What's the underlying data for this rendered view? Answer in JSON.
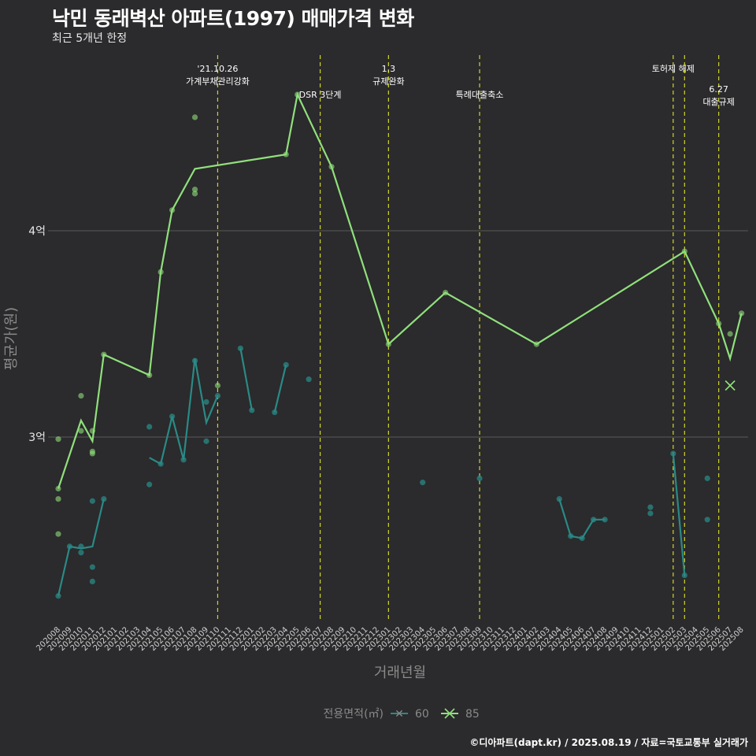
{
  "header": {
    "title": "낙민 동래벽산 아파트(1997) 매매가격 변화",
    "subtitle": "최근 5개년 한정"
  },
  "footer": {
    "caption": "©디아파트(dapt.kr) / 2025.08.19 / 자료=국토교통부 실거래가"
  },
  "colors": {
    "background": "#2b2a2c",
    "series_60": "#2a8a86",
    "series_85": "#8fe07c",
    "event_line": "#cfd62a",
    "gridline": "#5a5a5a"
  },
  "chart_data": {
    "type": "line",
    "title": "낙민 동래벽산 아파트(1997) 매매가격 변화",
    "subtitle": "최근 5개년 한정",
    "xlabel": "거래년월",
    "ylabel": "평균가(원)",
    "ylim": [
      2.1,
      5.0
    ],
    "y_unit": "억",
    "y_ticks": [
      {
        "value": 3,
        "label": "3억"
      },
      {
        "value": 4,
        "label": "4억"
      }
    ],
    "grid": "horizontal major only",
    "x_categories": [
      "202008",
      "202009",
      "202010",
      "202011",
      "202012",
      "202101",
      "202102",
      "202103",
      "202104",
      "202105",
      "202106",
      "202107",
      "202108",
      "202109",
      "202110",
      "202111",
      "202112",
      "202201",
      "202202",
      "202203",
      "202204",
      "202205",
      "202206",
      "202207",
      "202208",
      "202209",
      "202210",
      "202211",
      "202212",
      "202301",
      "202302",
      "202303",
      "202304",
      "202305",
      "202306",
      "202307",
      "202308",
      "202309",
      "202310",
      "202311",
      "202312",
      "202401",
      "202402",
      "202403",
      "202404",
      "202405",
      "202406",
      "202407",
      "202408",
      "202409",
      "202410",
      "202411",
      "202412",
      "202501",
      "202502",
      "202503",
      "202504",
      "202505",
      "202506",
      "202507",
      "202508"
    ],
    "legend": {
      "title": "전용면적(㎡)",
      "position": "bottom",
      "entries": [
        "60",
        "85"
      ]
    },
    "events": [
      {
        "x": "202110",
        "lines": [
          "'21.10.26",
          "가계부채관리강화"
        ],
        "row": 0
      },
      {
        "x": "202207",
        "lines": [
          "DSR 3단계"
        ],
        "row": 1
      },
      {
        "x": "202301",
        "lines": [
          "1.3",
          "규제완화"
        ],
        "row": 0
      },
      {
        "x": "202309",
        "lines": [
          "특례대출축소"
        ],
        "row": 1
      },
      {
        "x": "202502",
        "lines": [
          "토허제 해제"
        ],
        "row": 0
      },
      {
        "x": "202503",
        "lines": [],
        "row": 0
      },
      {
        "x": "202506",
        "lines": [
          "6.27",
          "대출규제"
        ],
        "row": 2
      }
    ],
    "series": [
      {
        "name": "60",
        "line_segments": [
          [
            [
              "202008",
              2.23
            ],
            [
              "202009",
              2.47
            ],
            [
              "202010",
              2.46
            ],
            [
              "202011",
              2.47
            ],
            [
              "202012",
              2.7
            ]
          ],
          [
            [
              "202104",
              2.9
            ],
            [
              "202105",
              2.87
            ],
            [
              "202106",
              3.1
            ],
            [
              "202107",
              2.89
            ],
            [
              "202108",
              3.38
            ],
            [
              "202109",
              3.07
            ],
            [
              "202110",
              3.2
            ]
          ],
          [
            [
              "202112",
              3.43
            ],
            [
              "202201",
              3.13
            ]
          ],
          [
            [
              "202203",
              3.12
            ],
            [
              "202204",
              3.35
            ]
          ],
          [
            [
              "202404",
              2.7
            ],
            [
              "202405",
              2.52
            ],
            [
              "202406",
              2.51
            ],
            [
              "202407",
              2.6
            ],
            [
              "202408",
              2.6
            ]
          ],
          [
            [
              "202502",
              2.92
            ],
            [
              "202503",
              2.33
            ]
          ]
        ],
        "points": [
          [
            "202008",
            2.23
          ],
          [
            "202009",
            2.47
          ],
          [
            "202010",
            2.44
          ],
          [
            "202010",
            2.47
          ],
          [
            "202011",
            2.69
          ],
          [
            "202011",
            2.37
          ],
          [
            "202011",
            2.3
          ],
          [
            "202012",
            2.7
          ],
          [
            "202104",
            2.77
          ],
          [
            "202104",
            3.05
          ],
          [
            "202105",
            2.87
          ],
          [
            "202106",
            3.1
          ],
          [
            "202107",
            2.89
          ],
          [
            "202108",
            3.37
          ],
          [
            "202109",
            3.17
          ],
          [
            "202109",
            2.98
          ],
          [
            "202110",
            3.2
          ],
          [
            "202112",
            3.43
          ],
          [
            "202201",
            3.13
          ],
          [
            "202203",
            3.12
          ],
          [
            "202204",
            3.35
          ],
          [
            "202206",
            3.28
          ],
          [
            "202304",
            2.78
          ],
          [
            "202309",
            2.8
          ],
          [
            "202404",
            2.7
          ],
          [
            "202405",
            2.52
          ],
          [
            "202406",
            2.51
          ],
          [
            "202407",
            2.6
          ],
          [
            "202408",
            2.6
          ],
          [
            "202412",
            2.66
          ],
          [
            "202412",
            2.63
          ],
          [
            "202502",
            2.92
          ],
          [
            "202503",
            2.33
          ],
          [
            "202505",
            2.8
          ],
          [
            "202505",
            2.6
          ]
        ]
      },
      {
        "name": "85",
        "line": [
          [
            "202008",
            2.75
          ],
          [
            "202010",
            3.08
          ],
          [
            "202011",
            2.98
          ],
          [
            "202012",
            3.4
          ],
          [
            "202104",
            3.3
          ],
          [
            "202105",
            3.8
          ],
          [
            "202106",
            4.1
          ],
          [
            "202108",
            4.3
          ],
          [
            "202204",
            4.37
          ],
          [
            "202205",
            4.66
          ],
          [
            "202208",
            4.31
          ],
          [
            "202301",
            3.45
          ],
          [
            "202306",
            3.7
          ],
          [
            "202402",
            3.45
          ],
          [
            "202503",
            3.9
          ],
          [
            "202506",
            3.55
          ],
          [
            "202507",
            3.38
          ],
          [
            "202508",
            3.6
          ]
        ],
        "points": [
          [
            "202008",
            2.99
          ],
          [
            "202008",
            2.7
          ],
          [
            "202008",
            2.53
          ],
          [
            "202008",
            2.75
          ],
          [
            "202010",
            3.2
          ],
          [
            "202010",
            3.03
          ],
          [
            "202011",
            3.03
          ],
          [
            "202011",
            2.93
          ],
          [
            "202011",
            2.92
          ],
          [
            "202012",
            3.4
          ],
          [
            "202104",
            3.3
          ],
          [
            "202105",
            3.8
          ],
          [
            "202106",
            4.1
          ],
          [
            "202108",
            4.55
          ],
          [
            "202108",
            4.2
          ],
          [
            "202108",
            4.18
          ],
          [
            "202110",
            3.25
          ],
          [
            "202204",
            4.37
          ],
          [
            "202205",
            4.66
          ],
          [
            "202208",
            4.31
          ],
          [
            "202301",
            3.45
          ],
          [
            "202306",
            3.7
          ],
          [
            "202402",
            3.45
          ],
          [
            "202503",
            3.9
          ],
          [
            "202506",
            3.55
          ],
          [
            "202507",
            3.5
          ],
          [
            "202508",
            3.6
          ]
        ],
        "cross_marker": [
          "202507",
          3.25
        ]
      }
    ]
  }
}
